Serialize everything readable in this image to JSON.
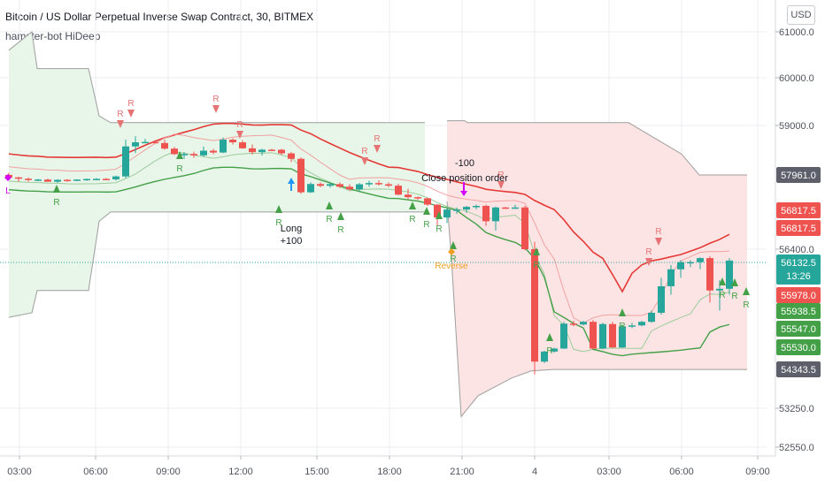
{
  "header": {
    "title": "Bitcoin / US Dollar Perpetual Inverse Swap Contract, 30, BITMEX",
    "indicator": "hamster-bot HiDeep",
    "currency_button": "USD"
  },
  "colors": {
    "bull": "#26a69a",
    "bear": "#ef5350",
    "signal_green": "#43a047",
    "signal_red": "#e57373",
    "long_arrow": "#2196f3",
    "close_arrow": "#d500f9",
    "reverse_text": "#f0a020",
    "band_line": "#9e9e9e",
    "green_fill": "#e8f5e9",
    "red_fill": "#fde4e4"
  },
  "chart_data": {
    "type": "candlestick",
    "x_ticks": [
      "03:00",
      "06:00",
      "09:00",
      "12:00",
      "15:00",
      "18:00",
      "21:00",
      "4",
      "03:00",
      "06:00",
      "09:00"
    ],
    "y_axis_ticks": [
      {
        "label": "61000.0",
        "value": 61000
      },
      {
        "label": "60000.0",
        "value": 60000
      },
      {
        "label": "59000.0",
        "value": 59000
      },
      {
        "label": "56400.0",
        "value": 56400
      },
      {
        "label": "53250.0",
        "value": 53250
      },
      {
        "label": "52550.0",
        "value": 52550
      }
    ],
    "price_labels": [
      {
        "label": "57961.0",
        "value": 57961,
        "bg": "#5d606b",
        "fg": "#ffffff"
      },
      {
        "label": "56817.5",
        "value": 56817.5,
        "bg": "#ef5350",
        "fg": "#ffffff"
      },
      {
        "label": "56817.5",
        "value": 56817.5,
        "bg": "#ef5350",
        "fg": "#ffffff",
        "offset": 1
      },
      {
        "label": "56132.5",
        "value": 56132.5,
        "bg": "#26a69a",
        "fg": "#ffffff",
        "sub": "13:26"
      },
      {
        "label": "55978.0",
        "value": 55978,
        "bg": "#ef5350",
        "fg": "#ffffff"
      },
      {
        "label": "55938.5",
        "value": 55938.5,
        "bg": "#43a047",
        "fg": "#ffffff"
      },
      {
        "label": "55547.0",
        "value": 55547,
        "bg": "#43a047",
        "fg": "#ffffff"
      },
      {
        "label": "55530.0",
        "value": 55530,
        "bg": "#43a047",
        "fg": "#ffffff"
      },
      {
        "label": "54343.5",
        "value": 54343.5,
        "bg": "#5d606b",
        "fg": "#ffffff"
      }
    ],
    "annotations": {
      "long": "Long",
      "long_qty": "+100",
      "close_qty": "-100",
      "close_text": "Close position order",
      "reverse": "Reverse",
      "signal_letter": "R",
      "left_marker": "L"
    },
    "candles": [
      [
        57962,
        58005,
        57855,
        57884
      ],
      [
        57884,
        57902,
        57742,
        57838
      ],
      [
        57838,
        57880,
        57746,
        57800
      ],
      [
        57800,
        57835,
        57760,
        57812
      ],
      [
        57812,
        57840,
        57736,
        57742
      ],
      [
        57742,
        57822,
        57708,
        57803
      ],
      [
        57803,
        57830,
        57742,
        57780
      ],
      [
        57780,
        57820,
        57760,
        57812
      ],
      [
        57812,
        57845,
        57772,
        57830
      ],
      [
        57830,
        57856,
        57792,
        57834
      ],
      [
        57834,
        57860,
        57790,
        57820
      ],
      [
        57820,
        57938,
        57780,
        57914
      ],
      [
        57914,
        58700,
        57860,
        58560
      ],
      [
        58560,
        58774,
        58420,
        58647
      ],
      [
        58647,
        58720,
        58630,
        58654
      ],
      [
        58654,
        58690,
        58620,
        58632
      ],
      [
        58632,
        58700,
        58490,
        58514
      ],
      [
        58514,
        58550,
        58380,
        58398
      ],
      [
        58398,
        58440,
        58300,
        58402
      ],
      [
        58402,
        58450,
        58320,
        58372
      ],
      [
        58372,
        58560,
        58340,
        58470
      ],
      [
        58470,
        58510,
        58398,
        58432
      ],
      [
        58432,
        58748,
        58420,
        58702
      ],
      [
        58702,
        58730,
        58600,
        58646
      ],
      [
        58646,
        58690,
        58510,
        58520
      ],
      [
        58520,
        58600,
        58390,
        58440
      ],
      [
        58440,
        58510,
        58370,
        58491
      ],
      [
        58491,
        58510,
        58470,
        58490
      ],
      [
        58490,
        58510,
        58380,
        58414
      ],
      [
        58414,
        58440,
        58230,
        58300
      ],
      [
        58300,
        58330,
        57350,
        57400
      ],
      [
        57400,
        57720,
        57380,
        57668
      ],
      [
        57668,
        57720,
        57560,
        57610
      ],
      [
        57610,
        57708,
        57550,
        57664
      ],
      [
        57664,
        57720,
        57540,
        57580
      ],
      [
        57580,
        57660,
        57460,
        57496
      ],
      [
        57496,
        57700,
        57420,
        57660
      ],
      [
        57660,
        57770,
        57580,
        57700
      ],
      [
        57700,
        57786,
        57620,
        57660
      ],
      [
        57660,
        57720,
        57560,
        57614
      ],
      [
        57614,
        57680,
        57300,
        57324
      ],
      [
        57324,
        57510,
        57180,
        57242
      ],
      [
        57242,
        57260,
        57150,
        57206
      ],
      [
        57206,
        57220,
        56960,
        57000
      ],
      [
        57000,
        57020,
        56650,
        56740
      ],
      [
        56740,
        56890,
        56680,
        56842
      ],
      [
        56842,
        56906,
        56780,
        56842
      ],
      [
        56842,
        56960,
        56790,
        56930
      ],
      [
        56930,
        57000,
        56850,
        56960
      ],
      [
        56960,
        57000,
        56650,
        56700
      ],
      [
        56700,
        56940,
        56600,
        56910
      ],
      [
        56910,
        56930,
        56860,
        56900
      ],
      [
        56900,
        57001,
        56890,
        56910
      ],
      [
        56910,
        56960,
        56380,
        56400
      ],
      [
        56400,
        56480,
        54200,
        54760
      ],
      [
        54760,
        55340,
        54680,
        55300
      ],
      [
        55300,
        55500,
        55240,
        55460
      ],
      [
        55460,
        55700,
        55440,
        55660
      ],
      [
        55660,
        55720,
        55600,
        55640
      ],
      [
        55640,
        55720,
        55620,
        55700
      ],
      [
        55700,
        55740,
        55430,
        55460
      ],
      [
        55460,
        55680,
        55420,
        55650
      ],
      [
        55650,
        55700,
        55500,
        55520
      ],
      [
        55520,
        55640,
        55480,
        55600
      ],
      [
        55600,
        55680,
        55560,
        55620
      ],
      [
        55620,
        55720,
        55600,
        55700
      ],
      [
        55700,
        55940,
        55680,
        55900
      ],
      [
        55900,
        56060,
        55860,
        56020
      ],
      [
        56020,
        56120,
        55980,
        56100
      ],
      [
        56100,
        56180,
        56060,
        56140
      ],
      [
        56140,
        56180,
        56110,
        56140
      ],
      [
        56140,
        56240,
        56100,
        56220
      ],
      [
        56220,
        56260,
        55960,
        56000
      ],
      [
        56000,
        56050,
        55940,
        56008
      ],
      [
        56008,
        56220,
        55980,
        56170
      ]
    ],
    "bands": {
      "green_region": {
        "x_range": [
          10,
          480
        ],
        "top": [
          [
            10,
            60.6
          ],
          [
            36,
            61
          ],
          [
            42,
            60.2
          ],
          [
            70,
            60.2
          ],
          [
            100,
            60.2
          ],
          [
            112,
            59.2
          ],
          [
            125,
            59.06
          ],
          [
            480,
            59.06
          ]
        ],
        "bottom": [
          [
            10,
            55.8
          ],
          [
            36,
            55.9
          ],
          [
            42,
            56.0
          ],
          [
            70,
            56.0
          ],
          [
            100,
            56.0
          ],
          [
            112,
            56.7
          ],
          [
            125,
            56.8
          ],
          [
            480,
            56.8
          ]
        ]
      },
      "red_region": {
        "x_range": [
          505,
          844
        ],
        "top": [
          [
            505,
            59.1
          ],
          [
            525,
            59.1
          ],
          [
            528,
            59.06
          ],
          [
            710,
            59.06
          ],
          [
            770,
            58.4
          ],
          [
            790,
            57.96
          ],
          [
            844,
            57.96
          ]
        ],
        "bottom": [
          [
            505,
            57.1
          ],
          [
            510,
            56.2
          ],
          [
            521,
            53.1
          ],
          [
            540,
            53.6
          ],
          [
            578,
            54.1
          ],
          [
            600,
            54.3
          ],
          [
            625,
            54.34
          ],
          [
            844,
            54.34
          ]
        ]
      }
    }
  }
}
